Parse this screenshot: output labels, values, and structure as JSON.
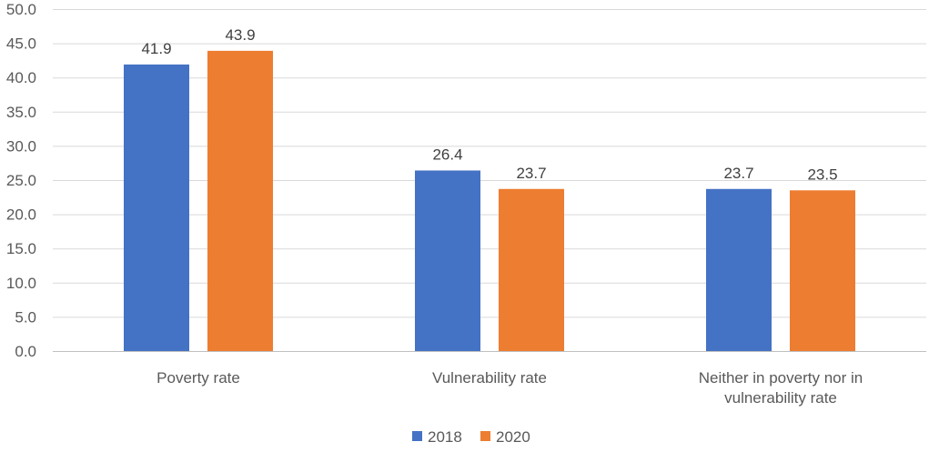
{
  "chart_data": {
    "type": "bar",
    "title": "",
    "xlabel": "",
    "ylabel": "",
    "ylim": [
      0,
      50
    ],
    "ytick_step": 5,
    "ytick_labels": [
      "0.0",
      "5.0",
      "10.0",
      "15.0",
      "20.0",
      "25.0",
      "30.0",
      "35.0",
      "40.0",
      "45.0",
      "50.0"
    ],
    "grid": true,
    "legend_position": "bottom",
    "categories": [
      [
        "Poverty rate"
      ],
      [
        "Vulnerability rate"
      ],
      [
        "Neither in poverty nor in",
        "vulnerability rate"
      ]
    ],
    "series": [
      {
        "name": "2018",
        "color": "#4472c4",
        "values": [
          41.9,
          26.4,
          23.7
        ],
        "labels": [
          "41.9",
          "26.4",
          "23.7"
        ]
      },
      {
        "name": "2020",
        "color": "#ed7d31",
        "values": [
          43.9,
          23.7,
          23.5
        ],
        "labels": [
          "43.9",
          "23.7",
          "23.5"
        ]
      }
    ]
  }
}
